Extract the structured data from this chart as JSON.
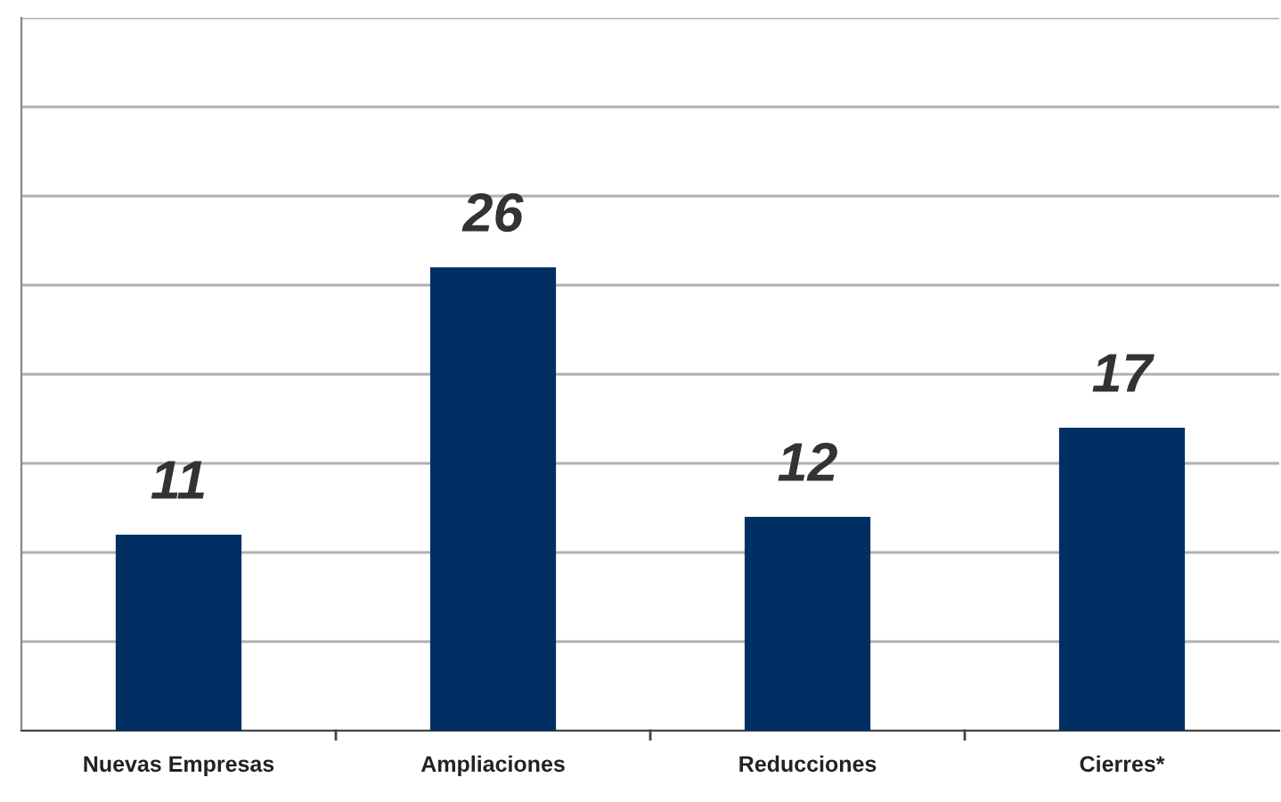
{
  "chart_data": {
    "type": "bar",
    "categories": [
      "Nuevas Empresas",
      "Ampliaciones",
      "Reducciones",
      "Cierres*"
    ],
    "values": [
      11,
      26,
      12,
      17
    ],
    "color": "#003063",
    "data_labels": true,
    "ylim": [
      0,
      40
    ],
    "yticks": [
      {
        "value": 0,
        "label": null
      },
      {
        "value": 5,
        "label": null
      },
      {
        "value": 10,
        "label": null
      },
      {
        "value": 15,
        "label": null
      },
      {
        "value": 20,
        "label": null
      },
      {
        "value": 25,
        "label": null
      },
      {
        "value": 30,
        "label": null
      },
      {
        "value": 35,
        "label": null
      },
      {
        "value": 40,
        "label": null
      }
    ],
    "grid": "y",
    "tick_labels": "x"
  }
}
